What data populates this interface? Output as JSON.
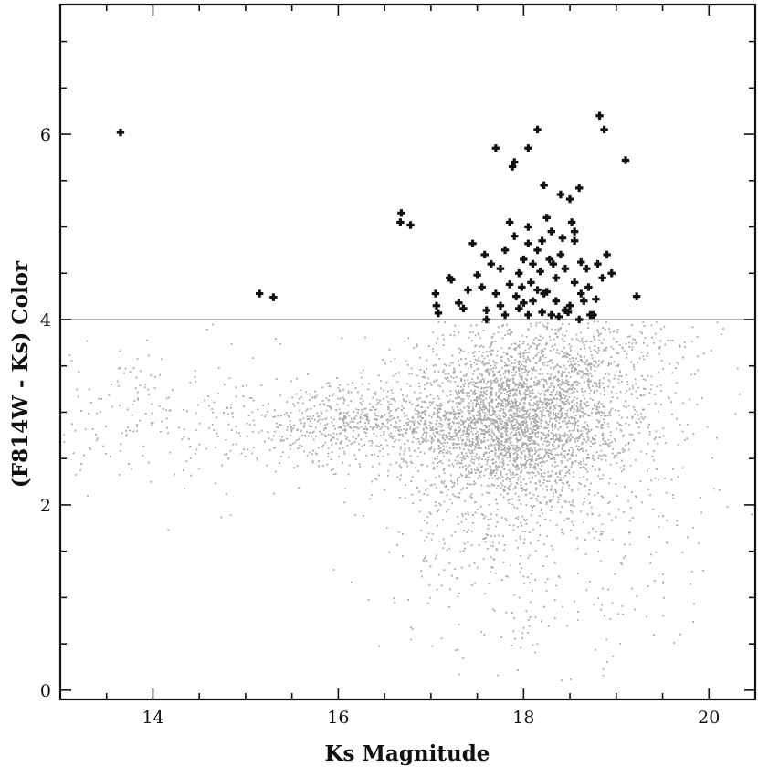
{
  "chart_data": {
    "type": "scatter",
    "title": "",
    "xlabel": "Ks Magnitude",
    "ylabel": "(F814W - Ks) Color",
    "xlim": [
      13.0,
      20.5
    ],
    "ylim": [
      -0.1,
      7.4
    ],
    "x_ticks": [
      14,
      16,
      18,
      20
    ],
    "x_tick_labels": [
      "14",
      "16",
      "18",
      "20"
    ],
    "y_ticks": [
      0,
      2,
      4,
      6
    ],
    "y_tick_labels": [
      "0",
      "2",
      "4",
      "6"
    ],
    "threshold": {
      "y": 4.0,
      "color": "#999999"
    },
    "grid": false,
    "legend": "none",
    "series": [
      {
        "marker": "plus-bold",
        "color": "#111111",
        "points": [
          [
            13.65,
            6.02
          ],
          [
            15.15,
            4.28
          ],
          [
            15.3,
            4.24
          ],
          [
            16.68,
            5.15
          ],
          [
            16.67,
            5.05
          ],
          [
            16.78,
            5.02
          ],
          [
            17.05,
            4.28
          ],
          [
            17.06,
            4.15
          ],
          [
            17.08,
            4.07
          ],
          [
            17.2,
            4.45
          ],
          [
            17.22,
            4.43
          ],
          [
            17.3,
            4.18
          ],
          [
            17.4,
            4.32
          ],
          [
            17.45,
            4.82
          ],
          [
            17.55,
            4.35
          ],
          [
            17.6,
            4.1
          ],
          [
            17.6,
            4.0
          ],
          [
            17.7,
            5.85
          ],
          [
            17.75,
            4.55
          ],
          [
            17.8,
            4.05
          ],
          [
            17.85,
            5.05
          ],
          [
            17.88,
            5.65
          ],
          [
            17.9,
            5.7
          ],
          [
            17.92,
            4.25
          ],
          [
            17.95,
            4.12
          ],
          [
            18.0,
            4.65
          ],
          [
            18.05,
            5.0
          ],
          [
            18.05,
            5.85
          ],
          [
            18.08,
            4.4
          ],
          [
            18.1,
            4.2
          ],
          [
            18.15,
            6.05
          ],
          [
            18.2,
            4.85
          ],
          [
            18.22,
            5.45
          ],
          [
            18.25,
            4.3
          ],
          [
            18.3,
            4.05
          ],
          [
            18.32,
            4.6
          ],
          [
            18.4,
            5.35
          ],
          [
            18.45,
            4.1
          ],
          [
            18.5,
            5.3
          ],
          [
            18.55,
            4.95
          ],
          [
            18.6,
            5.42
          ],
          [
            18.62,
            4.28
          ],
          [
            18.68,
            4.55
          ],
          [
            18.75,
            4.05
          ],
          [
            18.8,
            4.6
          ],
          [
            18.82,
            6.2
          ],
          [
            18.87,
            6.05
          ],
          [
            18.9,
            4.7
          ],
          [
            18.95,
            4.5
          ],
          [
            19.1,
            5.72
          ],
          [
            19.22,
            4.25
          ],
          [
            17.95,
            4.5
          ],
          [
            18.15,
            4.75
          ],
          [
            18.35,
            4.2
          ],
          [
            18.55,
            4.85
          ],
          [
            18.6,
            4.0
          ],
          [
            18.25,
            5.1
          ],
          [
            18.05,
            4.05
          ],
          [
            17.7,
            4.28
          ],
          [
            18.45,
            4.55
          ],
          [
            18.3,
            4.95
          ],
          [
            18.7,
            4.35
          ],
          [
            18.1,
            4.6
          ],
          [
            17.85,
            4.38
          ],
          [
            17.65,
            4.6
          ],
          [
            18.5,
            4.15
          ],
          [
            18.2,
            4.08
          ],
          [
            18.65,
            4.2
          ],
          [
            17.8,
            4.75
          ],
          [
            18.35,
            4.45
          ],
          [
            18.0,
            4.18
          ],
          [
            17.5,
            4.48
          ],
          [
            18.4,
            4.7
          ],
          [
            18.55,
            4.4
          ],
          [
            18.78,
            4.22
          ],
          [
            17.9,
            4.9
          ],
          [
            18.15,
            4.32
          ],
          [
            18.28,
            4.65
          ],
          [
            18.48,
            4.08
          ],
          [
            17.75,
            4.15
          ],
          [
            18.05,
            4.82
          ],
          [
            18.62,
            4.62
          ],
          [
            18.85,
            4.45
          ],
          [
            17.58,
            4.7
          ],
          [
            18.38,
            4.03
          ],
          [
            17.98,
            4.35
          ],
          [
            18.18,
            4.52
          ],
          [
            18.52,
            5.05
          ],
          [
            17.35,
            4.12
          ],
          [
            18.22,
            4.28
          ],
          [
            18.42,
            4.88
          ],
          [
            18.72,
            4.05
          ]
        ]
      }
    ],
    "background_cloud": {
      "color": "#a8a8a8",
      "marker": "dot",
      "clusters": [
        {
          "x_mean": 17.9,
          "x_sd": 0.55,
          "y_mean": 2.85,
          "y_sd": 0.45,
          "count": 2400
        },
        {
          "x_mean": 16.9,
          "x_sd": 0.7,
          "y_mean": 2.85,
          "y_sd": 0.22,
          "count": 600
        },
        {
          "x_mean": 15.9,
          "x_sd": 0.45,
          "y_mean": 2.9,
          "y_sd": 0.2,
          "count": 250
        },
        {
          "x_mean": 14.5,
          "x_sd": 0.8,
          "y_mean": 2.85,
          "y_sd": 0.4,
          "count": 220
        },
        {
          "x_mean": 18.0,
          "x_sd": 0.8,
          "y_mean": 1.8,
          "y_sd": 0.75,
          "count": 500
        },
        {
          "x_mean": 18.4,
          "x_sd": 0.7,
          "y_mean": 3.5,
          "y_sd": 0.35,
          "count": 700
        },
        {
          "x_mean": 19.2,
          "x_sd": 0.55,
          "y_mean": 2.8,
          "y_sd": 1.1,
          "count": 150
        },
        {
          "x_mean": 13.6,
          "x_sd": 0.35,
          "y_mean": 3.0,
          "y_sd": 0.45,
          "count": 40
        }
      ]
    }
  }
}
